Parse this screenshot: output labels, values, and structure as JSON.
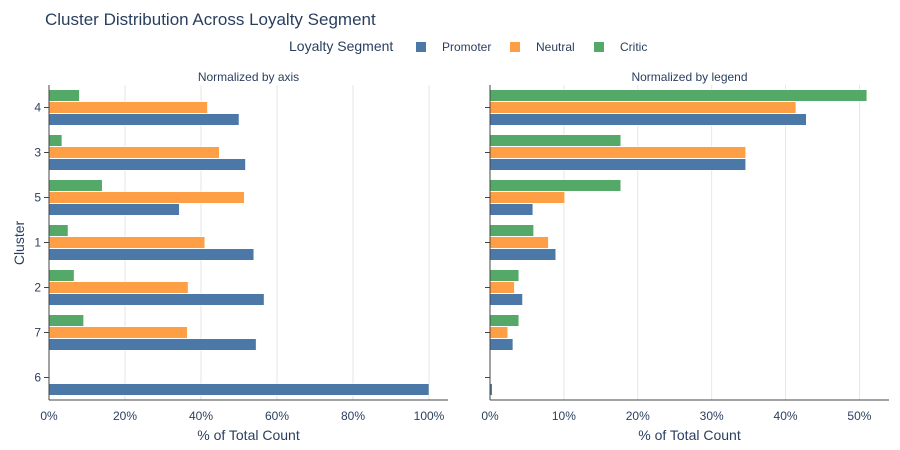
{
  "chart_data": {
    "type": "bar",
    "orientation": "horizontal",
    "title": "Cluster Distribution Across Loyalty Segment",
    "legend": {
      "title": "Loyalty Segment",
      "position": "top",
      "entries": [
        "Promoter",
        "Neutral",
        "Critic"
      ]
    },
    "colors": {
      "Promoter": "#4c78a8",
      "Neutral": "#ff9f45",
      "Critic": "#54a868"
    },
    "ylabel": "Cluster",
    "categories": [
      "4",
      "3",
      "5",
      "1",
      "2",
      "7",
      "6"
    ],
    "panels": [
      {
        "subtitle": "Normalized by axis",
        "xlabel": "% of Total Count",
        "xlim": [
          0,
          105
        ],
        "xticks": [
          0,
          20,
          40,
          60,
          80,
          100
        ],
        "xtick_labels": [
          "0%",
          "20%",
          "40%",
          "60%",
          "80%",
          "100%"
        ],
        "series": [
          {
            "name": "Promoter",
            "values": [
              50.0,
              51.7,
              34.3,
              53.9,
              56.6,
              54.5,
              100.0
            ]
          },
          {
            "name": "Neutral",
            "values": [
              41.7,
              44.8,
              51.4,
              41.0,
              36.6,
              36.4,
              0
            ]
          },
          {
            "name": "Critic",
            "values": [
              8.0,
              3.4,
              14.0,
              5.0,
              6.6,
              9.1,
              0
            ]
          }
        ]
      },
      {
        "subtitle": "Normalized by legend",
        "xlabel": "% of Total Count",
        "xlim": [
          0,
          54
        ],
        "xticks": [
          0,
          10,
          20,
          30,
          40,
          50
        ],
        "xtick_labels": [
          "0%",
          "10%",
          "20%",
          "30%",
          "40%",
          "50%"
        ],
        "series": [
          {
            "name": "Promoter",
            "values": [
              42.8,
              34.6,
              5.8,
              8.9,
              4.4,
              3.1,
              0.3
            ]
          },
          {
            "name": "Neutral",
            "values": [
              41.4,
              34.6,
              10.1,
              7.9,
              3.3,
              2.4,
              0
            ]
          },
          {
            "name": "Critic",
            "values": [
              51.0,
              17.7,
              17.7,
              5.9,
              3.9,
              3.9,
              0
            ]
          }
        ]
      }
    ]
  }
}
